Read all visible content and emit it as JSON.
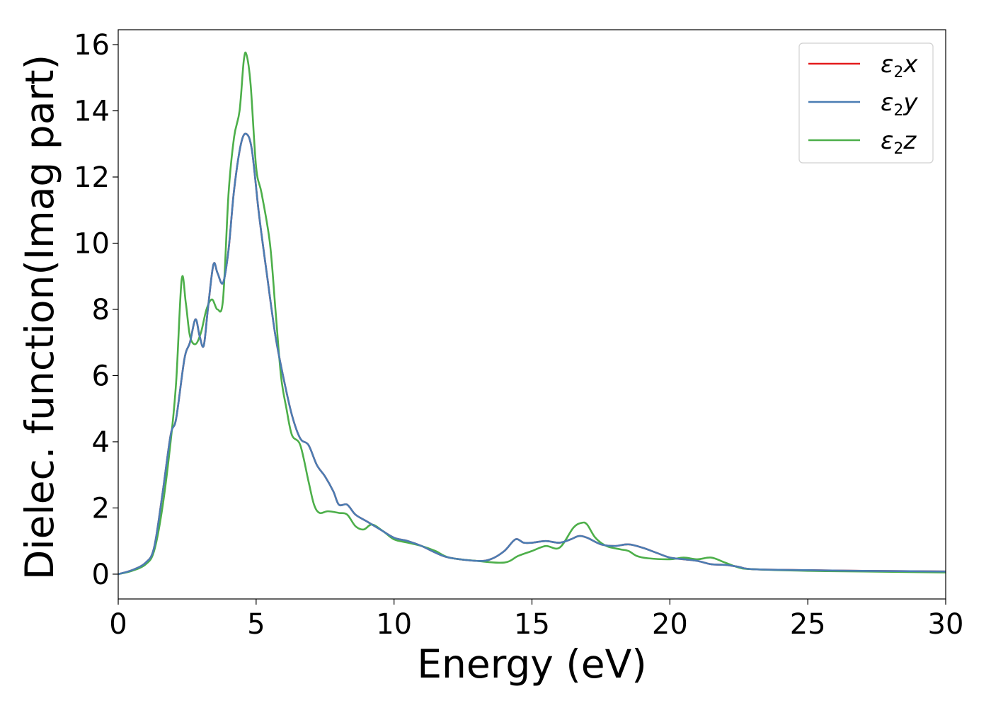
{
  "chart_data": {
    "type": "line",
    "title": "",
    "xlabel": "Energy (eV)",
    "ylabel": "Dielec. function(Imag part)",
    "xlim": [
      0,
      30
    ],
    "ylim": [
      -0.75,
      16.45
    ],
    "xticks": [
      0,
      5,
      10,
      15,
      20,
      25,
      30
    ],
    "yticks": [
      0,
      2,
      4,
      6,
      8,
      10,
      12,
      14,
      16
    ],
    "grid": false,
    "legend_position": "top-right",
    "series": [
      {
        "name": "ε2x",
        "legend": {
          "base": "ε",
          "sub": "2",
          "tail": "x"
        },
        "color": "#e41a1c",
        "points": [
          [
            0,
            0
          ],
          [
            0.5,
            0.12
          ],
          [
            1.0,
            0.35
          ],
          [
            1.3,
            0.8
          ],
          [
            1.6,
            2.4
          ],
          [
            1.9,
            4.2
          ],
          [
            2.1,
            4.7
          ],
          [
            2.4,
            6.5
          ],
          [
            2.6,
            7.0
          ],
          [
            2.8,
            7.7
          ],
          [
            2.95,
            7.2
          ],
          [
            3.1,
            6.9
          ],
          [
            3.25,
            8.0
          ],
          [
            3.45,
            9.35
          ],
          [
            3.6,
            9.1
          ],
          [
            3.8,
            8.8
          ],
          [
            4.0,
            9.8
          ],
          [
            4.2,
            11.6
          ],
          [
            4.45,
            13.0
          ],
          [
            4.65,
            13.3
          ],
          [
            4.85,
            12.8
          ],
          [
            5.1,
            10.9
          ],
          [
            5.4,
            9.0
          ],
          [
            5.7,
            7.2
          ],
          [
            6.0,
            5.9
          ],
          [
            6.3,
            4.8
          ],
          [
            6.6,
            4.1
          ],
          [
            6.9,
            3.9
          ],
          [
            7.2,
            3.3
          ],
          [
            7.5,
            2.95
          ],
          [
            7.8,
            2.5
          ],
          [
            8.0,
            2.1
          ],
          [
            8.3,
            2.1
          ],
          [
            8.6,
            1.8
          ],
          [
            9.0,
            1.6
          ],
          [
            9.5,
            1.35
          ],
          [
            10.0,
            1.1
          ],
          [
            10.5,
            1.0
          ],
          [
            11.0,
            0.85
          ],
          [
            11.5,
            0.65
          ],
          [
            12.0,
            0.5
          ],
          [
            13.0,
            0.4
          ],
          [
            13.5,
            0.45
          ],
          [
            14.0,
            0.7
          ],
          [
            14.4,
            1.05
          ],
          [
            14.7,
            0.95
          ],
          [
            15.0,
            0.95
          ],
          [
            15.5,
            1.0
          ],
          [
            16.0,
            0.95
          ],
          [
            16.4,
            1.05
          ],
          [
            16.7,
            1.15
          ],
          [
            17.0,
            1.1
          ],
          [
            17.5,
            0.9
          ],
          [
            18.0,
            0.85
          ],
          [
            18.5,
            0.9
          ],
          [
            19.0,
            0.8
          ],
          [
            19.5,
            0.65
          ],
          [
            20.0,
            0.5
          ],
          [
            20.5,
            0.45
          ],
          [
            21.0,
            0.4
          ],
          [
            21.5,
            0.3
          ],
          [
            22.0,
            0.28
          ],
          [
            22.5,
            0.22
          ],
          [
            23.0,
            0.15
          ],
          [
            25.0,
            0.12
          ],
          [
            27.0,
            0.1
          ],
          [
            30.0,
            0.08
          ]
        ]
      },
      {
        "name": "ε2y",
        "legend": {
          "base": "ε",
          "sub": "2",
          "tail": "y"
        },
        "color": "#4a7db3",
        "points": [
          [
            0,
            0
          ],
          [
            0.5,
            0.12
          ],
          [
            1.0,
            0.35
          ],
          [
            1.3,
            0.8
          ],
          [
            1.6,
            2.4
          ],
          [
            1.9,
            4.2
          ],
          [
            2.1,
            4.7
          ],
          [
            2.4,
            6.5
          ],
          [
            2.6,
            7.0
          ],
          [
            2.8,
            7.7
          ],
          [
            2.95,
            7.2
          ],
          [
            3.1,
            6.9
          ],
          [
            3.25,
            8.0
          ],
          [
            3.45,
            9.35
          ],
          [
            3.6,
            9.1
          ],
          [
            3.8,
            8.8
          ],
          [
            4.0,
            9.8
          ],
          [
            4.2,
            11.6
          ],
          [
            4.45,
            13.0
          ],
          [
            4.65,
            13.3
          ],
          [
            4.85,
            12.8
          ],
          [
            5.1,
            10.9
          ],
          [
            5.4,
            9.0
          ],
          [
            5.7,
            7.2
          ],
          [
            6.0,
            5.9
          ],
          [
            6.3,
            4.8
          ],
          [
            6.6,
            4.1
          ],
          [
            6.9,
            3.9
          ],
          [
            7.2,
            3.3
          ],
          [
            7.5,
            2.95
          ],
          [
            7.8,
            2.5
          ],
          [
            8.0,
            2.1
          ],
          [
            8.3,
            2.1
          ],
          [
            8.6,
            1.8
          ],
          [
            9.0,
            1.6
          ],
          [
            9.5,
            1.35
          ],
          [
            10.0,
            1.1
          ],
          [
            10.5,
            1.0
          ],
          [
            11.0,
            0.85
          ],
          [
            11.5,
            0.65
          ],
          [
            12.0,
            0.5
          ],
          [
            13.0,
            0.4
          ],
          [
            13.5,
            0.45
          ],
          [
            14.0,
            0.7
          ],
          [
            14.4,
            1.05
          ],
          [
            14.7,
            0.95
          ],
          [
            15.0,
            0.95
          ],
          [
            15.5,
            1.0
          ],
          [
            16.0,
            0.95
          ],
          [
            16.4,
            1.05
          ],
          [
            16.7,
            1.15
          ],
          [
            17.0,
            1.1
          ],
          [
            17.5,
            0.9
          ],
          [
            18.0,
            0.85
          ],
          [
            18.5,
            0.9
          ],
          [
            19.0,
            0.8
          ],
          [
            19.5,
            0.65
          ],
          [
            20.0,
            0.5
          ],
          [
            20.5,
            0.45
          ],
          [
            21.0,
            0.4
          ],
          [
            21.5,
            0.3
          ],
          [
            22.0,
            0.28
          ],
          [
            22.5,
            0.22
          ],
          [
            23.0,
            0.15
          ],
          [
            25.0,
            0.12
          ],
          [
            27.0,
            0.1
          ],
          [
            30.0,
            0.08
          ]
        ]
      },
      {
        "name": "ε2z",
        "legend": {
          "base": "ε",
          "sub": "2",
          "tail": "z"
        },
        "color": "#4daf4a",
        "points": [
          [
            0,
            0
          ],
          [
            0.5,
            0.1
          ],
          [
            1.0,
            0.3
          ],
          [
            1.3,
            0.7
          ],
          [
            1.6,
            2.0
          ],
          [
            1.9,
            4.0
          ],
          [
            2.1,
            5.8
          ],
          [
            2.3,
            8.9
          ],
          [
            2.45,
            8.2
          ],
          [
            2.6,
            7.2
          ],
          [
            2.8,
            6.95
          ],
          [
            3.0,
            7.3
          ],
          [
            3.2,
            8.0
          ],
          [
            3.4,
            8.3
          ],
          [
            3.6,
            8.0
          ],
          [
            3.8,
            8.3
          ],
          [
            4.0,
            11.5
          ],
          [
            4.2,
            13.2
          ],
          [
            4.4,
            14.0
          ],
          [
            4.55,
            15.5
          ],
          [
            4.65,
            15.7
          ],
          [
            4.8,
            14.8
          ],
          [
            5.0,
            12.3
          ],
          [
            5.2,
            11.5
          ],
          [
            5.5,
            10.0
          ],
          [
            5.7,
            8.0
          ],
          [
            5.9,
            6.0
          ],
          [
            6.1,
            5.0
          ],
          [
            6.3,
            4.2
          ],
          [
            6.6,
            3.9
          ],
          [
            6.9,
            2.8
          ],
          [
            7.1,
            2.1
          ],
          [
            7.3,
            1.85
          ],
          [
            7.6,
            1.9
          ],
          [
            8.0,
            1.85
          ],
          [
            8.3,
            1.8
          ],
          [
            8.6,
            1.45
          ],
          [
            8.9,
            1.35
          ],
          [
            9.2,
            1.5
          ],
          [
            9.6,
            1.3
          ],
          [
            10.0,
            1.05
          ],
          [
            10.5,
            0.95
          ],
          [
            11.0,
            0.85
          ],
          [
            11.5,
            0.7
          ],
          [
            12.0,
            0.5
          ],
          [
            13.0,
            0.4
          ],
          [
            14.0,
            0.35
          ],
          [
            14.5,
            0.55
          ],
          [
            15.0,
            0.7
          ],
          [
            15.5,
            0.85
          ],
          [
            16.0,
            0.8
          ],
          [
            16.5,
            1.4
          ],
          [
            16.8,
            1.55
          ],
          [
            17.0,
            1.5
          ],
          [
            17.3,
            1.1
          ],
          [
            17.7,
            0.85
          ],
          [
            18.2,
            0.75
          ],
          [
            18.5,
            0.7
          ],
          [
            18.8,
            0.55
          ],
          [
            19.2,
            0.48
          ],
          [
            20.0,
            0.45
          ],
          [
            20.5,
            0.5
          ],
          [
            21.0,
            0.45
          ],
          [
            21.5,
            0.5
          ],
          [
            22.0,
            0.35
          ],
          [
            22.5,
            0.2
          ],
          [
            23.0,
            0.15
          ],
          [
            25.0,
            0.1
          ],
          [
            27.0,
            0.08
          ],
          [
            30.0,
            0.05
          ]
        ]
      }
    ]
  }
}
